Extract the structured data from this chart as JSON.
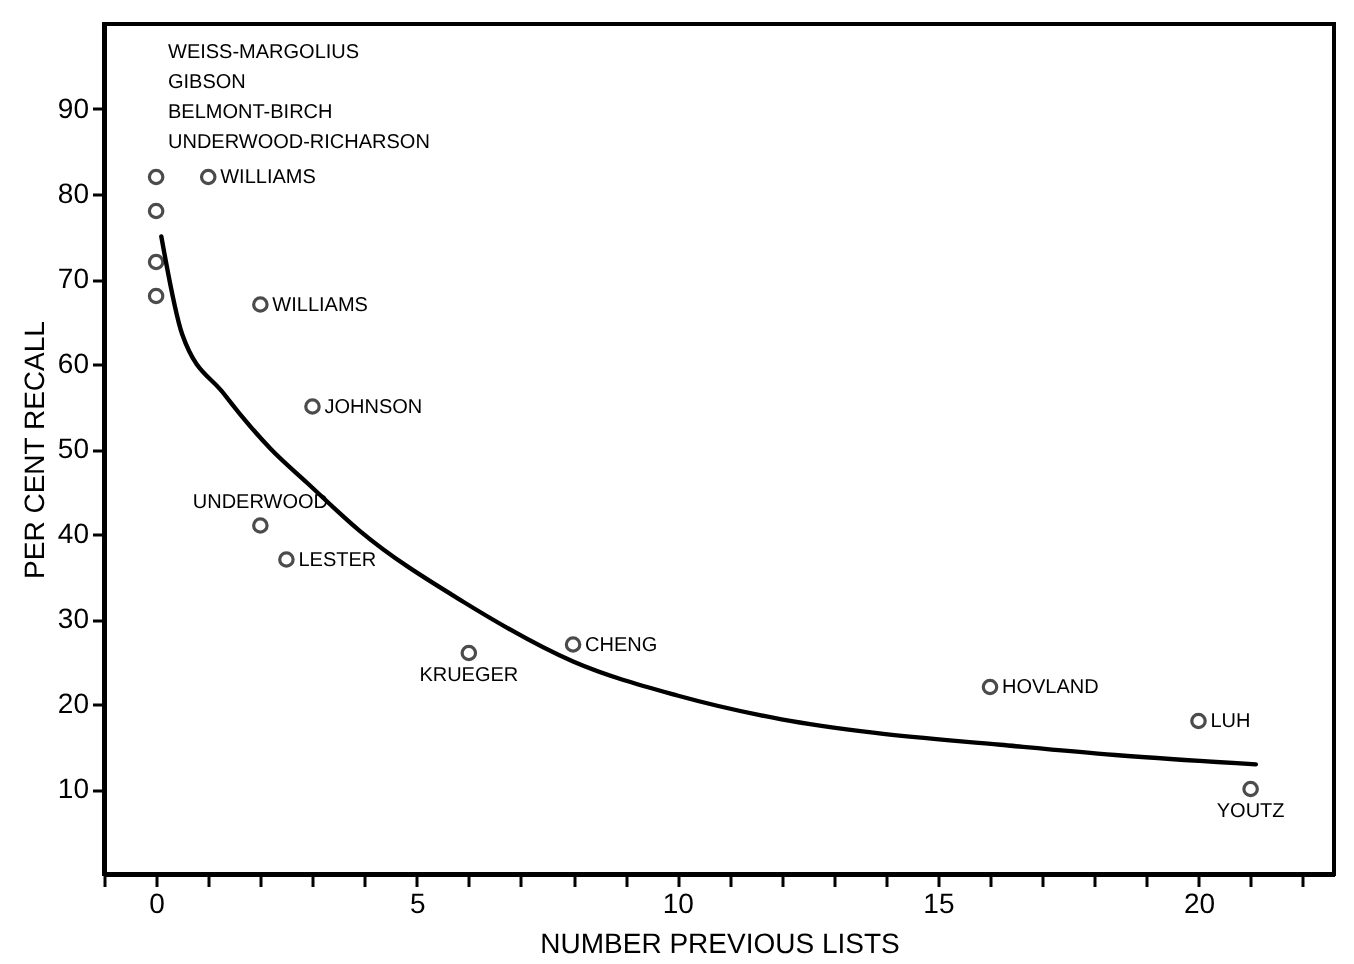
{
  "chart_data": {
    "type": "scatter",
    "xlabel": "NUMBER PREVIOUS LISTS",
    "ylabel": "PER CENT RECALL",
    "xlim": [
      -1,
      22.6
    ],
    "ylim": [
      0,
      100
    ],
    "xticks": [
      {
        "value": -1,
        "label": null
      },
      0,
      {
        "value": 1,
        "label": null
      },
      {
        "value": 2,
        "label": null
      },
      {
        "value": 3,
        "label": null
      },
      {
        "value": 4,
        "label": null
      },
      5,
      {
        "value": 6,
        "label": null
      },
      {
        "value": 7,
        "label": null
      },
      {
        "value": 8,
        "label": null
      },
      {
        "value": 9,
        "label": null
      },
      10,
      {
        "value": 11,
        "label": null
      },
      {
        "value": 12,
        "label": null
      },
      {
        "value": 13,
        "label": null
      },
      {
        "value": 14,
        "label": null
      },
      15,
      {
        "value": 16,
        "label": null
      },
      {
        "value": 17,
        "label": null
      },
      {
        "value": 18,
        "label": null
      },
      {
        "value": 19,
        "label": null
      },
      20,
      {
        "value": 21,
        "label": null
      },
      {
        "value": 22,
        "label": null
      }
    ],
    "yticks": [
      10,
      20,
      30,
      40,
      50,
      60,
      70,
      80,
      90
    ],
    "series": [
      {
        "marker": "circle",
        "color": "#000000",
        "x": [
          0,
          0,
          0,
          0,
          1,
          2,
          3,
          2,
          2.5,
          6,
          8,
          16,
          20,
          21
        ],
        "values": [
          82,
          78,
          72,
          68,
          82,
          67,
          55,
          41,
          37,
          26,
          27,
          22,
          18,
          10
        ]
      },
      {
        "type": "line",
        "color": "#000000",
        "x": [
          0.1,
          0.5,
          1.3,
          2.2,
          2.9,
          3.9,
          5.9,
          8,
          10,
          12,
          13.8,
          16.2,
          18.4,
          21.1
        ],
        "values": [
          75,
          63.5,
          56.5,
          50,
          46,
          40.4,
          32,
          25,
          21,
          18.2,
          16.6,
          15.2,
          14,
          12.9
        ]
      }
    ],
    "annotations": [
      "WEISS-MARGOLIUS",
      "GIBSON",
      "BELMONT-BIRCH",
      "UNDERWOOD-RICHARSON",
      {
        "text": "WILLIAMS",
        "x": 1,
        "y": 82
      },
      {
        "text": "WILLIAMS",
        "x": 2,
        "y": 67
      },
      {
        "text": "JOHNSON",
        "x": 3,
        "y": 55
      },
      {
        "text": "UNDERWOOD",
        "x": 2,
        "y": 41
      },
      {
        "text": "LESTER",
        "x": 2.5,
        "y": 37
      },
      {
        "text": "KRUEGER",
        "x": 6,
        "y": 26
      },
      {
        "text": "CHENG",
        "x": 8,
        "y": 27
      },
      {
        "text": "HOVLAND",
        "x": 16,
        "y": 22
      },
      {
        "text": "LUH",
        "x": 20,
        "y": 18
      },
      {
        "text": "YOUTZ",
        "x": 21,
        "y": 10
      }
    ]
  }
}
